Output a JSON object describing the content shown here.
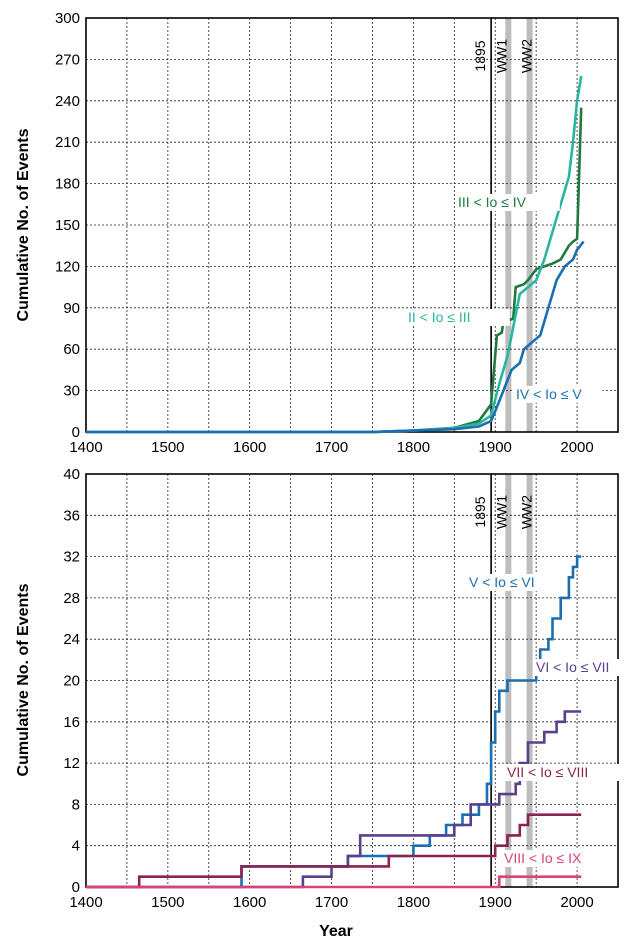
{
  "chart_data": [
    {
      "type": "line",
      "panel": "top",
      "ylabel": "Cumulative No. of Events",
      "xlabel": "",
      "xlim": [
        1400,
        2050
      ],
      "ylim": [
        0,
        300
      ],
      "x_ticks": [
        1400,
        1500,
        1600,
        1700,
        1800,
        1900,
        2000
      ],
      "y_ticks": [
        0,
        30,
        60,
        90,
        120,
        150,
        180,
        210,
        240,
        270,
        300
      ],
      "grid": true,
      "markers": [
        {
          "label": "1895",
          "x": 1895,
          "style": "line"
        },
        {
          "label": "WW1",
          "x": 1916,
          "style": "band"
        },
        {
          "label": "WW2",
          "x": 1942,
          "style": "band"
        }
      ],
      "series": [
        {
          "name": "II < Io ≤ III",
          "color": "#1e7a3e",
          "points": [
            [
              1400,
              0
            ],
            [
              1750,
              0
            ],
            [
              1800,
              1
            ],
            [
              1850,
              3
            ],
            [
              1880,
              8
            ],
            [
              1895,
              20
            ],
            [
              1902,
              70
            ],
            [
              1908,
              72
            ],
            [
              1910,
              80
            ],
            [
              1922,
              82
            ],
            [
              1925,
              105
            ],
            [
              1935,
              107
            ],
            [
              1940,
              110
            ],
            [
              1950,
              118
            ],
            [
              1960,
              120
            ],
            [
              1970,
              122
            ],
            [
              1980,
              125
            ],
            [
              1990,
              135
            ],
            [
              1995,
              138
            ],
            [
              2000,
              140
            ],
            [
              2005,
              235
            ]
          ]
        },
        {
          "name": "III < Io ≤ IV",
          "color": "#2bb5a0",
          "points": [
            [
              1400,
              0
            ],
            [
              1750,
              0
            ],
            [
              1800,
              1
            ],
            [
              1850,
              3
            ],
            [
              1880,
              6
            ],
            [
              1895,
              12
            ],
            [
              1905,
              35
            ],
            [
              1910,
              45
            ],
            [
              1915,
              55
            ],
            [
              1920,
              70
            ],
            [
              1930,
              100
            ],
            [
              1940,
              105
            ],
            [
              1950,
              110
            ],
            [
              1960,
              125
            ],
            [
              1970,
              145
            ],
            [
              1980,
              165
            ],
            [
              1990,
              185
            ],
            [
              1995,
              210
            ],
            [
              2000,
              240
            ],
            [
              2005,
              258
            ]
          ]
        },
        {
          "name": "IV < Io ≤ V",
          "color": "#1b6fb0",
          "points": [
            [
              1400,
              0
            ],
            [
              1750,
              0
            ],
            [
              1800,
              1
            ],
            [
              1850,
              2
            ],
            [
              1880,
              4
            ],
            [
              1895,
              8
            ],
            [
              1900,
              15
            ],
            [
              1910,
              30
            ],
            [
              1920,
              45
            ],
            [
              1930,
              50
            ],
            [
              1935,
              60
            ],
            [
              1945,
              65
            ],
            [
              1955,
              70
            ],
            [
              1965,
              90
            ],
            [
              1975,
              110
            ],
            [
              1985,
              120
            ],
            [
              1995,
              125
            ],
            [
              2000,
              132
            ],
            [
              2008,
              138
            ]
          ]
        }
      ],
      "series_labels": [
        "III < Io ≤ IV",
        "II < Io ≤ III",
        "IV < Io ≤ V"
      ]
    },
    {
      "type": "line",
      "panel": "bottom",
      "ylabel": "Cumulative No. of Events",
      "xlabel": "Year",
      "xlim": [
        1400,
        2050
      ],
      "ylim": [
        0,
        40
      ],
      "x_ticks": [
        1400,
        1500,
        1600,
        1700,
        1800,
        1900,
        2000
      ],
      "y_ticks": [
        0,
        4,
        8,
        12,
        16,
        20,
        24,
        28,
        32,
        36,
        40
      ],
      "grid": true,
      "markers": [
        {
          "label": "1895",
          "x": 1895,
          "style": "line"
        },
        {
          "label": "WW1",
          "x": 1916,
          "style": "band"
        },
        {
          "label": "WW2",
          "x": 1942,
          "style": "band"
        }
      ],
      "series": [
        {
          "name": "V < Io ≤ VI",
          "color": "#1b6fb0",
          "points": [
            [
              1400,
              0
            ],
            [
              1590,
              0
            ],
            [
              1590,
              2
            ],
            [
              1720,
              2
            ],
            [
              1720,
              3
            ],
            [
              1800,
              3
            ],
            [
              1800,
              4
            ],
            [
              1820,
              4
            ],
            [
              1820,
              5
            ],
            [
              1840,
              5
            ],
            [
              1840,
              6
            ],
            [
              1860,
              6
            ],
            [
              1860,
              7
            ],
            [
              1880,
              7
            ],
            [
              1880,
              8
            ],
            [
              1890,
              8
            ],
            [
              1890,
              10
            ],
            [
              1895,
              10
            ],
            [
              1895,
              14
            ],
            [
              1900,
              14
            ],
            [
              1900,
              17
            ],
            [
              1905,
              17
            ],
            [
              1905,
              19
            ],
            [
              1915,
              19
            ],
            [
              1915,
              20
            ],
            [
              1950,
              20
            ],
            [
              1950,
              21
            ],
            [
              1955,
              21
            ],
            [
              1955,
              23
            ],
            [
              1965,
              23
            ],
            [
              1965,
              24
            ],
            [
              1970,
              24
            ],
            [
              1970,
              26
            ],
            [
              1980,
              26
            ],
            [
              1980,
              28
            ],
            [
              1990,
              28
            ],
            [
              1990,
              30
            ],
            [
              1995,
              30
            ],
            [
              1995,
              31
            ],
            [
              2000,
              31
            ],
            [
              2000,
              32
            ],
            [
              2005,
              32
            ]
          ]
        },
        {
          "name": "VI < Io ≤ VII",
          "color": "#5b3f8f",
          "points": [
            [
              1400,
              0
            ],
            [
              1665,
              0
            ],
            [
              1665,
              1
            ],
            [
              1700,
              1
            ],
            [
              1700,
              2
            ],
            [
              1720,
              2
            ],
            [
              1720,
              3
            ],
            [
              1735,
              3
            ],
            [
              1735,
              5
            ],
            [
              1850,
              5
            ],
            [
              1850,
              6
            ],
            [
              1870,
              6
            ],
            [
              1870,
              8
            ],
            [
              1905,
              8
            ],
            [
              1905,
              9
            ],
            [
              1925,
              9
            ],
            [
              1925,
              10
            ],
            [
              1930,
              10
            ],
            [
              1930,
              12
            ],
            [
              1940,
              12
            ],
            [
              1940,
              14
            ],
            [
              1960,
              14
            ],
            [
              1960,
              15
            ],
            [
              1975,
              15
            ],
            [
              1975,
              16
            ],
            [
              1985,
              16
            ],
            [
              1985,
              17
            ],
            [
              2005,
              17
            ]
          ]
        },
        {
          "name": "VII < Io ≤ VIII",
          "color": "#8a2350",
          "points": [
            [
              1400,
              0
            ],
            [
              1465,
              0
            ],
            [
              1465,
              1
            ],
            [
              1590,
              1
            ],
            [
              1590,
              2
            ],
            [
              1770,
              2
            ],
            [
              1770,
              3
            ],
            [
              1900,
              3
            ],
            [
              1900,
              4
            ],
            [
              1915,
              4
            ],
            [
              1915,
              5
            ],
            [
              1930,
              5
            ],
            [
              1930,
              6
            ],
            [
              1940,
              6
            ],
            [
              1940,
              7
            ],
            [
              2005,
              7
            ]
          ]
        },
        {
          "name": "VIII < Io ≤ IX",
          "color": "#e0407a",
          "points": [
            [
              1400,
              0
            ],
            [
              1905,
              0
            ],
            [
              1905,
              1
            ],
            [
              2005,
              1
            ]
          ]
        }
      ],
      "series_labels": [
        "V < Io ≤ VI",
        "VI < Io ≤ VII",
        "VII < Io ≤ VIII",
        "VIII < Io ≤ IX"
      ]
    }
  ]
}
